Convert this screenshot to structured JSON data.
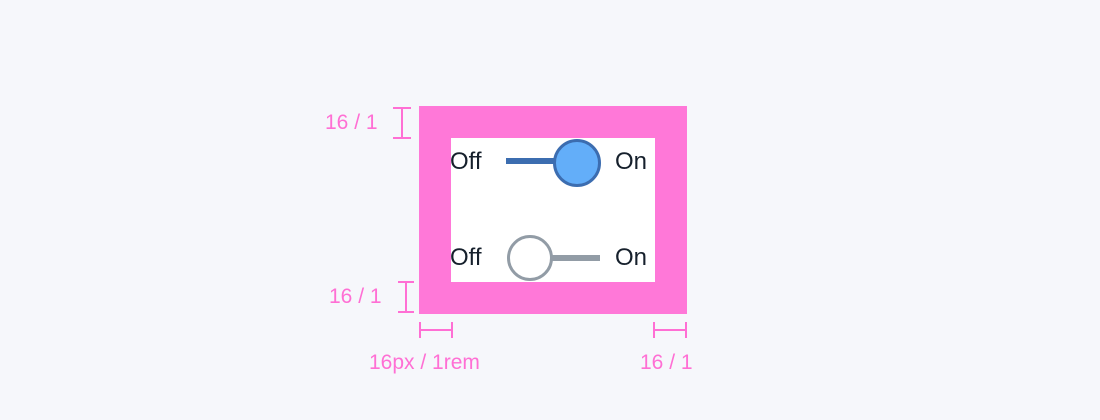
{
  "toggles": [
    {
      "off_label": "Off",
      "on_label": "On",
      "state": "on",
      "accent": "#3c6db0",
      "knob_fill": "#63aef9"
    },
    {
      "off_label": "Off",
      "on_label": "On",
      "state": "off",
      "accent": "#929ca6",
      "knob_fill": "#ffffff"
    }
  ],
  "annotations": {
    "top": "16 / 1",
    "bottom": "16 / 1",
    "left": "16px / 1rem",
    "right": "16 / 1"
  },
  "colors": {
    "padding_highlight": "#ff78d8",
    "annotation": "#ff6fd4",
    "background": "#f6f7fb"
  }
}
